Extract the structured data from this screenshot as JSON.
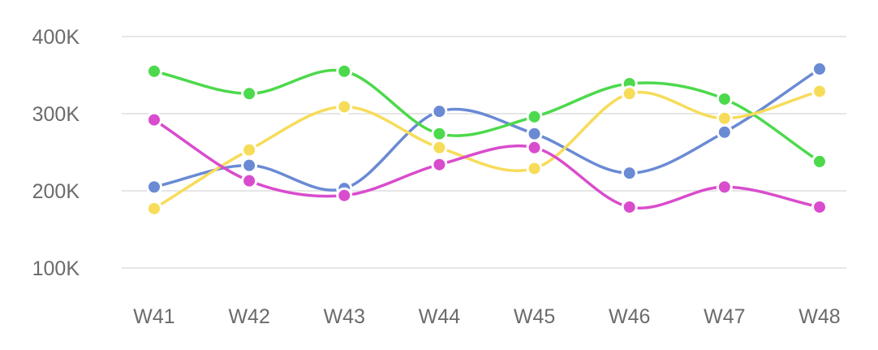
{
  "chart_data": {
    "type": "line",
    "title": "",
    "xlabel": "",
    "ylabel": "",
    "categories": [
      "W41",
      "W42",
      "W43",
      "W44",
      "W45",
      "W46",
      "W47",
      "W48"
    ],
    "y_ticks": [
      "100K",
      "200K",
      "300K",
      "400K"
    ],
    "ylim": [
      100000,
      400000
    ],
    "grid": true,
    "legend": "none",
    "smooth": true,
    "series": [
      {
        "color": "#6a8ad4",
        "values": [
          205000,
          233000,
          203000,
          303000,
          274000,
          223000,
          276000,
          358000
        ]
      },
      {
        "color": "#4cd94c",
        "values": [
          355000,
          326000,
          355000,
          274000,
          296000,
          339000,
          319000,
          238000
        ]
      },
      {
        "color": "#f7dc5a",
        "values": [
          177000,
          253000,
          309000,
          256000,
          229000,
          326000,
          294000,
          329000
        ]
      },
      {
        "color": "#d94ccd",
        "values": [
          292000,
          213000,
          194000,
          234000,
          256000,
          179000,
          205000,
          179000
        ]
      }
    ]
  }
}
